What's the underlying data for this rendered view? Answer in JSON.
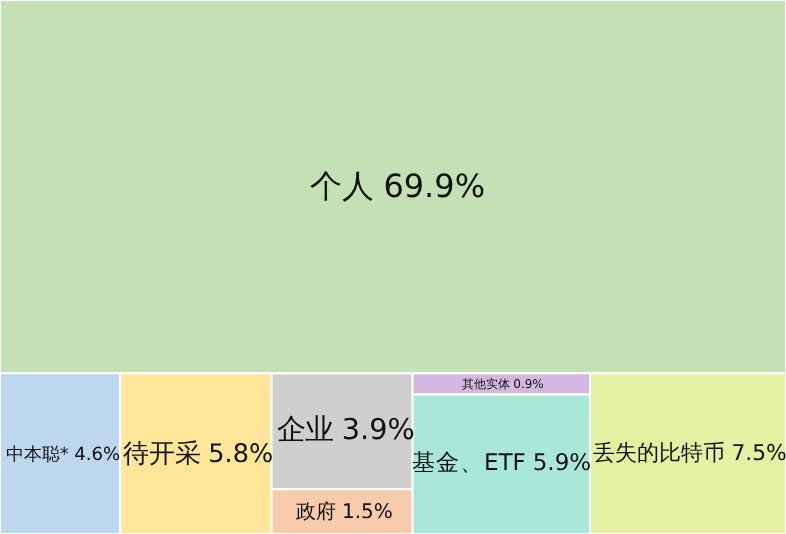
{
  "chart_data": {
    "type": "other",
    "categories": [
      "个人",
      "中本聪*",
      "待开采",
      "企业",
      "政府",
      "其他实体",
      "基金、ETF",
      "丢失的比特币"
    ],
    "values": [
      69.9,
      4.6,
      5.8,
      3.9,
      1.5,
      0.9,
      5.9,
      7.5
    ],
    "colors": [
      "#c5e0b4",
      "#bdd7ee",
      "#ffe699",
      "#d0cece",
      "#f8cbad",
      "#d5b8e0",
      "#a9e8d8",
      "#e6f0a3"
    ],
    "value_labels": [
      "69.9%",
      "4.6%",
      "5.8%",
      "3.9%",
      "1.5%",
      "0.9%",
      "5.9%",
      "7.5%"
    ]
  }
}
